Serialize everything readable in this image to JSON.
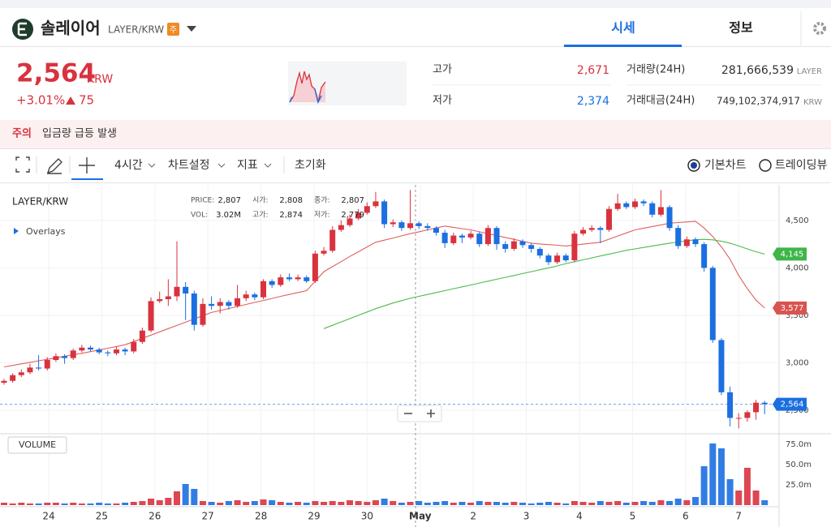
{
  "header": {
    "name": "솔레이어",
    "pair": "LAYER/KRW",
    "badge": "주",
    "tabs": [
      "시세",
      "정보"
    ]
  },
  "quote": {
    "price": "2,564",
    "unit": "KRW",
    "change_rate": "+3.01%",
    "change": "75",
    "stats": [
      {
        "label": "고가",
        "value": "2,671"
      },
      {
        "label": "저가",
        "value": "2,374"
      },
      {
        "label": "거래량(24H)",
        "value": "281,666,539",
        "unit": "LAYER"
      },
      {
        "label": "거래대금(24H)",
        "value": "749,102,374,917",
        "unit": "KRW"
      }
    ]
  },
  "notice": {
    "tag": "주의",
    "text": "입금량 급등 발생"
  },
  "toolbar": {
    "interval": "4시간",
    "settings": "차트설정",
    "indicators": "지표",
    "reset": "초기화",
    "modes": [
      "기본차트",
      "트레이딩뷰"
    ]
  },
  "chart": {
    "type": "candlestick",
    "symbol": "LAYER/KRW",
    "overlays": "Overlays",
    "info": [
      [
        "PRICE:",
        "2,807"
      ],
      [
        "시가:",
        "2,808"
      ],
      [
        "종가:",
        "2,807"
      ],
      [
        "VOL:",
        "3.02M"
      ],
      [
        "고가:",
        "2,874"
      ],
      [
        "저가:",
        "2,779"
      ]
    ],
    "x_labels": [
      "24",
      "25",
      "26",
      "27",
      "28",
      "29",
      "30",
      "May",
      "2",
      "3",
      "4",
      "5",
      "6",
      "7"
    ],
    "ylim": [
      2270,
      4840
    ],
    "yticks": [
      {
        "value": 2500,
        "label": "2,500"
      },
      {
        "value": 3000,
        "label": "3,000"
      },
      {
        "value": 3500,
        "label": "3,500"
      },
      {
        "value": 4000,
        "label": "4,000"
      },
      {
        "value": 4500,
        "label": "4,500"
      }
    ],
    "up_color": "#d9323f",
    "down_color": "#1b6fe0",
    "candles": [
      [
        2790,
        2830,
        2770,
        2810
      ],
      [
        2810,
        2890,
        2790,
        2870
      ],
      [
        2870,
        2930,
        2850,
        2900
      ],
      [
        2900,
        2990,
        2880,
        2950
      ],
      [
        2950,
        3080,
        2920,
        2940
      ],
      [
        2940,
        3060,
        2920,
        3030
      ],
      [
        3030,
        3100,
        3010,
        3070
      ],
      [
        3070,
        3090,
        2990,
        3050
      ],
      [
        3050,
        3150,
        3030,
        3130
      ],
      [
        3130,
        3190,
        3110,
        3160
      ],
      [
        3160,
        3180,
        3120,
        3140
      ],
      [
        3140,
        3160,
        3090,
        3110
      ],
      [
        3110,
        3130,
        3070,
        3100
      ],
      [
        3100,
        3170,
        3080,
        3140
      ],
      [
        3140,
        3160,
        3080,
        3120
      ],
      [
        3120,
        3250,
        3100,
        3220
      ],
      [
        3220,
        3370,
        3200,
        3340
      ],
      [
        3340,
        3690,
        3320,
        3650
      ],
      [
        3650,
        3750,
        3630,
        3670
      ],
      [
        3670,
        3880,
        3600,
        3700
      ],
      [
        3700,
        4280,
        3650,
        3800
      ],
      [
        3800,
        3850,
        3450,
        3730
      ],
      [
        3730,
        3760,
        3340,
        3400
      ],
      [
        3400,
        3680,
        3380,
        3620
      ],
      [
        3620,
        3700,
        3560,
        3600
      ],
      [
        3600,
        3680,
        3520,
        3640
      ],
      [
        3640,
        3660,
        3560,
        3600
      ],
      [
        3600,
        3820,
        3580,
        3680
      ],
      [
        3680,
        3760,
        3650,
        3720
      ],
      [
        3720,
        3740,
        3660,
        3690
      ],
      [
        3690,
        3880,
        3670,
        3860
      ],
      [
        3860,
        3880,
        3790,
        3820
      ],
      [
        3820,
        3930,
        3800,
        3900
      ],
      [
        3900,
        3940,
        3860,
        3880
      ],
      [
        3880,
        3930,
        3860,
        3900
      ],
      [
        3900,
        3920,
        3840,
        3860
      ],
      [
        3860,
        4180,
        3840,
        4150
      ],
      [
        4150,
        4220,
        4130,
        4180
      ],
      [
        4180,
        4440,
        4160,
        4400
      ],
      [
        4400,
        4500,
        4380,
        4450
      ],
      [
        4450,
        4560,
        4430,
        4520
      ],
      [
        4520,
        4620,
        4500,
        4580
      ],
      [
        4580,
        4690,
        4560,
        4650
      ],
      [
        4650,
        4800,
        4630,
        4700
      ],
      [
        4700,
        4720,
        4420,
        4460
      ],
      [
        4460,
        4510,
        4430,
        4480
      ],
      [
        4480,
        4500,
        4390,
        4420
      ],
      [
        4420,
        4820,
        4400,
        4470
      ],
      [
        4470,
        4490,
        4410,
        4440
      ],
      [
        4440,
        4470,
        4390,
        4420
      ],
      [
        4420,
        4440,
        4340,
        4370
      ],
      [
        4370,
        4400,
        4210,
        4260
      ],
      [
        4260,
        4370,
        4240,
        4340
      ],
      [
        4340,
        4360,
        4260,
        4320
      ],
      [
        4320,
        4390,
        4300,
        4360
      ],
      [
        4360,
        4380,
        4220,
        4250
      ],
      [
        4250,
        4450,
        4230,
        4420
      ],
      [
        4420,
        4440,
        4190,
        4250
      ],
      [
        4250,
        4280,
        4160,
        4200
      ],
      [
        4200,
        4310,
        4180,
        4280
      ],
      [
        4280,
        4300,
        4210,
        4240
      ],
      [
        4240,
        4260,
        4160,
        4200
      ],
      [
        4200,
        4220,
        4100,
        4130
      ],
      [
        4130,
        4150,
        4030,
        4060
      ],
      [
        4060,
        4160,
        4040,
        4130
      ],
      [
        4130,
        4150,
        4060,
        4080
      ],
      [
        4080,
        4390,
        4060,
        4360
      ],
      [
        4360,
        4430,
        4340,
        4400
      ],
      [
        4400,
        4450,
        4380,
        4420
      ],
      [
        4420,
        4440,
        4260,
        4400
      ],
      [
        4400,
        4650,
        4380,
        4620
      ],
      [
        4620,
        4780,
        4600,
        4680
      ],
      [
        4680,
        4700,
        4620,
        4640
      ],
      [
        4640,
        4730,
        4620,
        4700
      ],
      [
        4700,
        4720,
        4650,
        4680
      ],
      [
        4680,
        4700,
        4530,
        4560
      ],
      [
        4560,
        4820,
        4540,
        4640
      ],
      [
        4640,
        4660,
        4390,
        4420
      ],
      [
        4420,
        4450,
        4200,
        4230
      ],
      [
        4230,
        4330,
        4210,
        4300
      ],
      [
        4300,
        4320,
        4220,
        4250
      ],
      [
        4250,
        4270,
        3960,
        4000
      ],
      [
        4000,
        4020,
        3210,
        3240
      ],
      [
        3240,
        3260,
        2660,
        2690
      ],
      [
        2690,
        2750,
        2330,
        2420
      ],
      [
        2420,
        2470,
        2310,
        2420
      ],
      [
        2420,
        2500,
        2380,
        2480
      ],
      [
        2480,
        2610,
        2400,
        2580
      ],
      [
        2580,
        2600,
        2460,
        2564
      ]
    ],
    "ma": [
      {
        "color": "#e0605c",
        "values": [
          2957,
          2973,
          2989,
          3005,
          3021,
          3037,
          3053,
          3069,
          3085,
          3100,
          3118,
          3136,
          3154,
          3172,
          3190,
          3224,
          3258,
          3292,
          3326,
          3360,
          3394,
          3428,
          3462,
          3496,
          3530,
          3551,
          3572,
          3593,
          3615,
          3636,
          3657,
          3678,
          3700,
          3720,
          3740,
          3760,
          3860,
          3960,
          4013,
          4066,
          4120,
          4170,
          4220,
          4270,
          4292,
          4314,
          4337,
          4360,
          4380,
          4400,
          4420,
          4440,
          4427,
          4413,
          4400,
          4380,
          4360,
          4340,
          4320,
          4300,
          4280,
          4260,
          4252,
          4245,
          4238,
          4230,
          4240,
          4250,
          4260,
          4270,
          4302,
          4335,
          4368,
          4400,
          4418,
          4435,
          4452,
          4470,
          4477,
          4484,
          4490,
          4420,
          4330,
          4220,
          4090,
          3920,
          3780,
          3660,
          3577
        ]
      },
      {
        "color": "#4cbb4c",
        "values": [
          null,
          null,
          null,
          null,
          null,
          null,
          null,
          null,
          null,
          null,
          null,
          null,
          null,
          null,
          null,
          null,
          null,
          null,
          null,
          null,
          null,
          null,
          null,
          null,
          null,
          null,
          null,
          null,
          null,
          null,
          null,
          null,
          null,
          null,
          null,
          null,
          null,
          3360,
          3395,
          3430,
          3465,
          3500,
          3535,
          3570,
          3600,
          3630,
          3655,
          3680,
          3700,
          3720,
          3740,
          3760,
          3780,
          3800,
          3820,
          3840,
          3860,
          3880,
          3900,
          3920,
          3940,
          3960,
          3980,
          4000,
          4020,
          4045,
          4065,
          4085,
          4105,
          4125,
          4145,
          4165,
          4185,
          4200,
          4215,
          4230,
          4245,
          4260,
          4272,
          4284,
          4296,
          4300,
          4295,
          4280,
          4260,
          4230,
          4200,
          4170,
          4145
        ]
      }
    ],
    "current_price": 2564,
    "price_labels": [
      {
        "value": 4145,
        "label": "4,145",
        "color": "#3fb54a"
      },
      {
        "value": 3577,
        "label": "3,577",
        "color": "#d9534f"
      },
      {
        "value": 2564,
        "label": "2,564",
        "color": "#1b6fe0"
      }
    ],
    "volume": {
      "title": "VOLUME",
      "ylim": [
        0,
        85
      ],
      "yticks": [
        {
          "value": 25,
          "label": "25.0m"
        },
        {
          "value": 50,
          "label": "50.0m"
        },
        {
          "value": 75,
          "label": "75.0m"
        }
      ],
      "values": [
        3,
        2,
        3,
        2,
        2,
        3,
        3,
        2,
        3,
        2,
        2,
        3,
        2,
        2,
        3,
        4,
        5,
        8,
        6,
        9,
        17,
        26,
        20,
        5,
        4,
        3,
        5,
        6,
        4,
        5,
        7,
        6,
        4,
        3,
        4,
        3,
        5,
        4,
        5,
        4,
        6,
        5,
        4,
        6,
        8,
        5,
        3,
        4,
        5,
        3,
        4,
        5,
        3,
        4,
        3,
        5,
        4,
        4,
        3,
        4,
        3,
        2,
        3,
        4,
        3,
        2,
        5,
        4,
        3,
        5,
        4,
        5,
        3,
        4,
        5,
        4,
        6,
        5,
        8,
        6,
        10,
        48,
        76,
        70,
        32,
        18,
        46,
        18,
        6
      ]
    }
  }
}
